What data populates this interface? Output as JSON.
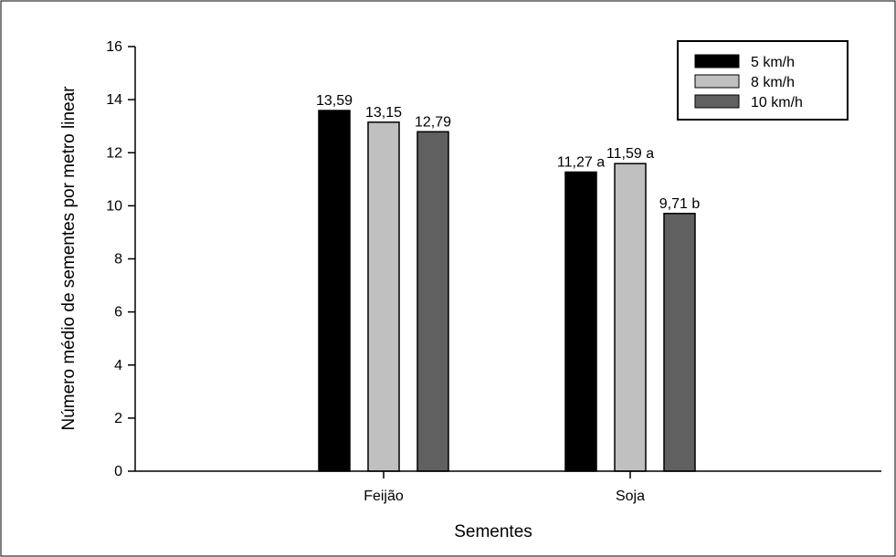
{
  "chart_data": {
    "type": "bar",
    "xlabel": "Sementes",
    "ylabel": "Número médio de sementes por metro linear",
    "ylim": [
      0,
      16
    ],
    "yticks": [
      "0",
      "2",
      "4",
      "6",
      "8",
      "10",
      "12",
      "14",
      "16"
    ],
    "categories": [
      "Feijão",
      "Soja"
    ],
    "series": [
      {
        "name": "5 km/h",
        "color": "#000000",
        "values": [
          13.59,
          11.27
        ],
        "labels": [
          "13,59",
          "11,27 a"
        ]
      },
      {
        "name": "8 km/h",
        "color": "#c0c0c0",
        "values": [
          13.15,
          11.59
        ],
        "labels": [
          "13,15",
          "11,59 a"
        ]
      },
      {
        "name": "10 km/h",
        "color": "#606060",
        "values": [
          12.79,
          9.71
        ],
        "labels": [
          "12,79",
          "9,71 b"
        ]
      }
    ],
    "legend_position": "top-right",
    "grid": false
  }
}
